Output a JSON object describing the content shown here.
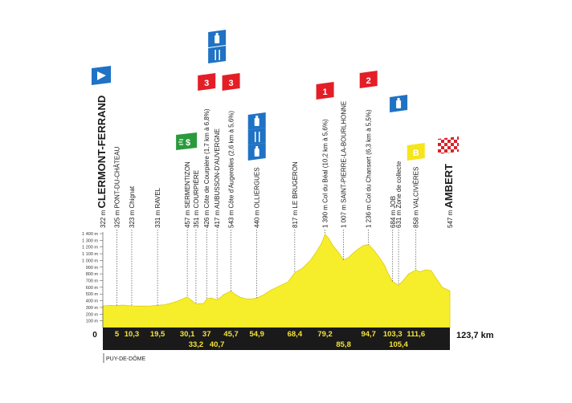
{
  "stage": {
    "start_label": "CLERMONT-FERRAND",
    "finish_label": "AMBERT",
    "total_distance": "123,7 km",
    "region": "PUY-DE-DÔME",
    "start_km_label": "0"
  },
  "y_axis": {
    "ticks": [
      "100 m",
      "200 m",
      "300 m",
      "400 m",
      "500 m",
      "600 m",
      "700 m",
      "800 m",
      "900 m",
      "1 000 m",
      "1 100 m",
      "1 200 m",
      "1 300 m",
      "1 400 m"
    ]
  },
  "colors": {
    "profile_fill": "#f6ee2a",
    "profile_edge": "#dccb14",
    "ground": "#1a1a1a",
    "km_text": "#f5e23a",
    "badge_red": "#e41e26",
    "badge_blue": "#1f72c4",
    "badge_green": "#2a9a3c",
    "badge_yellow": "#f6e51b"
  },
  "chart_data": {
    "type": "area",
    "xlabel": "",
    "ylabel": "",
    "xlim": [
      0,
      123.7
    ],
    "ylim": [
      0,
      1400
    ],
    "profile_x_km": [
      0,
      3,
      5,
      7,
      10.3,
      14,
      17,
      19.5,
      22,
      24,
      27,
      30.1,
      33.2,
      36,
      37,
      38.5,
      40.7,
      42,
      43,
      45.7,
      47,
      49,
      51,
      53,
      54.9,
      57,
      60,
      63,
      66,
      68.4,
      71,
      74,
      76,
      78,
      79.2,
      80.5,
      82,
      84,
      85.8,
      87.5,
      89,
      91,
      93,
      94.7,
      96.5,
      98.5,
      100.5,
      101.5,
      103.3,
      105.4,
      107,
      109,
      111.6,
      113,
      115,
      117,
      119,
      121,
      123.7
    ],
    "profile_y_m": [
      322,
      330,
      325,
      335,
      323,
      320,
      322,
      331,
      340,
      360,
      400,
      457,
      351,
      360,
      426,
      440,
      417,
      450,
      490,
      543,
      500,
      450,
      430,
      425,
      440,
      480,
      560,
      620,
      680,
      817,
      880,
      1000,
      1120,
      1260,
      1390,
      1330,
      1220,
      1120,
      1007,
      1040,
      1100,
      1170,
      1225,
      1236,
      1160,
      1050,
      920,
      820,
      684,
      631,
      700,
      800,
      858,
      830,
      860,
      850,
      720,
      600,
      547
    ],
    "points": [
      {
        "km": "0",
        "alt": "322 m",
        "name": "CLERMONT-FERRAND",
        "x": 0,
        "y": 322
      },
      {
        "km": "5",
        "alt": "325 m",
        "name": "PONT-DU-CHÂTEAU",
        "x": 5,
        "y": 325
      },
      {
        "km": "10,3",
        "alt": "323 m",
        "name": "Chignat",
        "x": 10.3,
        "y": 323
      },
      {
        "km": "19,5",
        "alt": "331 m",
        "name": "RAVEL",
        "x": 19.5,
        "y": 331
      },
      {
        "km": "30,1",
        "alt": "457 m",
        "name": "SERMENTIZON",
        "x": 30.1,
        "y": 457
      },
      {
        "km": "33,2",
        "alt": "351 m",
        "name": "COURPIÈRE",
        "x": 33.2,
        "y": 351
      },
      {
        "km": "37",
        "alt": "426 m",
        "name": "Côte de Courpière (1,7 km à 6,8%)",
        "x": 37,
        "y": 426
      },
      {
        "km": "40,7",
        "alt": "417 m",
        "name": "AUBUSSON-D'AUVERGNE",
        "x": 40.7,
        "y": 417
      },
      {
        "km": "45,7",
        "alt": "543 m",
        "name": "Côte d'Augerolles (2,6 km à 5,6%)",
        "x": 45.7,
        "y": 543
      },
      {
        "km": "54,9",
        "alt": "440 m",
        "name": "OLLIERGUES",
        "x": 54.9,
        "y": 440
      },
      {
        "km": "68,4",
        "alt": "817 m",
        "name": "LE BRUGERON",
        "x": 68.4,
        "y": 817
      },
      {
        "km": "79,2",
        "alt": "1 390 m",
        "name": "Col du Béal (10,2 km à 5,6%)",
        "x": 79.2,
        "y": 1390
      },
      {
        "km": "85,8",
        "alt": "1 007 m",
        "name": "SAINT-PIERRE-LA-BOURLHONNE",
        "x": 85.8,
        "y": 1007
      },
      {
        "km": "94,7",
        "alt": "1 236 m",
        "name": "Col du Chansert (6,3 km à 5,5%)",
        "x": 94.7,
        "y": 1236
      },
      {
        "km": "103,3",
        "alt": "684 m",
        "name": "JOB",
        "x": 103.3,
        "y": 684
      },
      {
        "km": "105,4",
        "alt": "631 m",
        "name": "Zone de collecte",
        "x": 105.4,
        "y": 631
      },
      {
        "km": "111,6",
        "alt": "858 m",
        "name": "VALCIVIÈRES",
        "x": 111.6,
        "y": 858
      },
      {
        "km": "123,7",
        "alt": "547 m",
        "name": "AMBERT",
        "x": 123.7,
        "y": 547
      }
    ],
    "badges": [
      {
        "at_km": 0,
        "kind": "start",
        "color": "blue",
        "text": ""
      },
      {
        "at_km": 30.1,
        "kind": "sprint",
        "color": "green",
        "text": "$"
      },
      {
        "at_km": 37,
        "kind": "climb",
        "color": "red",
        "text": "3"
      },
      {
        "at_km": 40.7,
        "kind": "feed",
        "color": "blue",
        "text": ""
      },
      {
        "at_km": 40.7,
        "kind": "water",
        "color": "blue",
        "text": ""
      },
      {
        "at_km": 45.7,
        "kind": "climb",
        "color": "red",
        "text": "3"
      },
      {
        "at_km": 54.9,
        "kind": "water",
        "color": "blue",
        "text": ""
      },
      {
        "at_km": 54.9,
        "kind": "feed",
        "color": "blue",
        "text": ""
      },
      {
        "at_km": 54.9,
        "kind": "water",
        "color": "blue",
        "text": ""
      },
      {
        "at_km": 79.2,
        "kind": "climb",
        "color": "red",
        "text": "1"
      },
      {
        "at_km": 94.7,
        "kind": "climb",
        "color": "red",
        "text": "2"
      },
      {
        "at_km": 105.4,
        "kind": "water",
        "color": "blue",
        "text": ""
      },
      {
        "at_km": 111.6,
        "kind": "bonus",
        "color": "yellow",
        "text": "B"
      },
      {
        "at_km": 123.7,
        "kind": "finish",
        "color": "checkered",
        "text": ""
      }
    ]
  }
}
